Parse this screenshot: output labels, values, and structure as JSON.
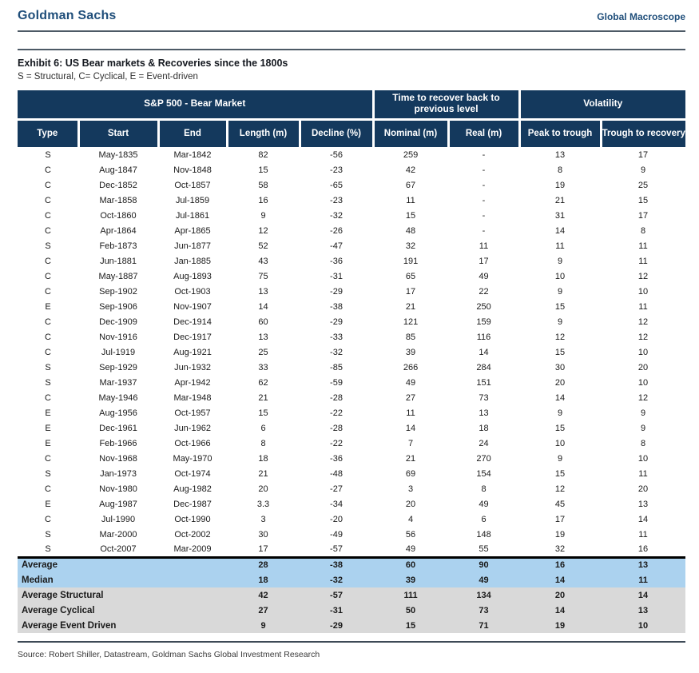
{
  "masthead": {
    "brand": "Goldman Sachs",
    "publication": "Global Macroscope"
  },
  "exhibit": {
    "title": "Exhibit 6: US Bear markets & Recoveries since the 1800s",
    "legend": "S = Structural, C= Cyclical, E = Event-driven"
  },
  "table": {
    "groups": [
      {
        "label": "S&P 500 - Bear Market",
        "span": 5
      },
      {
        "label": "Time to recover back to previous level",
        "span": 2
      },
      {
        "label": "Volatility",
        "span": 2
      }
    ],
    "columns": [
      "Type",
      "Start",
      "End",
      "Length (m)",
      "Decline (%)",
      "Nominal (m)",
      "Real (m)",
      "Peak to trough",
      "Trough to recovery"
    ],
    "rows": [
      [
        "S",
        "May-1835",
        "Mar-1842",
        "82",
        "-56",
        "259",
        "-",
        "13",
        "17"
      ],
      [
        "C",
        "Aug-1847",
        "Nov-1848",
        "15",
        "-23",
        "42",
        "-",
        "8",
        "9"
      ],
      [
        "C",
        "Dec-1852",
        "Oct-1857",
        "58",
        "-65",
        "67",
        "-",
        "19",
        "25"
      ],
      [
        "C",
        "Mar-1858",
        "Jul-1859",
        "16",
        "-23",
        "11",
        "-",
        "21",
        "15"
      ],
      [
        "C",
        "Oct-1860",
        "Jul-1861",
        "9",
        "-32",
        "15",
        "-",
        "31",
        "17"
      ],
      [
        "C",
        "Apr-1864",
        "Apr-1865",
        "12",
        "-26",
        "48",
        "-",
        "14",
        "8"
      ],
      [
        "S",
        "Feb-1873",
        "Jun-1877",
        "52",
        "-47",
        "32",
        "11",
        "11",
        "11"
      ],
      [
        "C",
        "Jun-1881",
        "Jan-1885",
        "43",
        "-36",
        "191",
        "17",
        "9",
        "11"
      ],
      [
        "C",
        "May-1887",
        "Aug-1893",
        "75",
        "-31",
        "65",
        "49",
        "10",
        "12"
      ],
      [
        "C",
        "Sep-1902",
        "Oct-1903",
        "13",
        "-29",
        "17",
        "22",
        "9",
        "10"
      ],
      [
        "E",
        "Sep-1906",
        "Nov-1907",
        "14",
        "-38",
        "21",
        "250",
        "15",
        "11"
      ],
      [
        "C",
        "Dec-1909",
        "Dec-1914",
        "60",
        "-29",
        "121",
        "159",
        "9",
        "12"
      ],
      [
        "C",
        "Nov-1916",
        "Dec-1917",
        "13",
        "-33",
        "85",
        "116",
        "12",
        "12"
      ],
      [
        "C",
        "Jul-1919",
        "Aug-1921",
        "25",
        "-32",
        "39",
        "14",
        "15",
        "10"
      ],
      [
        "S",
        "Sep-1929",
        "Jun-1932",
        "33",
        "-85",
        "266",
        "284",
        "30",
        "20"
      ],
      [
        "S",
        "Mar-1937",
        "Apr-1942",
        "62",
        "-59",
        "49",
        "151",
        "20",
        "10"
      ],
      [
        "C",
        "May-1946",
        "Mar-1948",
        "21",
        "-28",
        "27",
        "73",
        "14",
        "12"
      ],
      [
        "E",
        "Aug-1956",
        "Oct-1957",
        "15",
        "-22",
        "11",
        "13",
        "9",
        "9"
      ],
      [
        "E",
        "Dec-1961",
        "Jun-1962",
        "6",
        "-28",
        "14",
        "18",
        "15",
        "9"
      ],
      [
        "E",
        "Feb-1966",
        "Oct-1966",
        "8",
        "-22",
        "7",
        "24",
        "10",
        "8"
      ],
      [
        "C",
        "Nov-1968",
        "May-1970",
        "18",
        "-36",
        "21",
        "270",
        "9",
        "10"
      ],
      [
        "S",
        "Jan-1973",
        "Oct-1974",
        "21",
        "-48",
        "69",
        "154",
        "15",
        "11"
      ],
      [
        "C",
        "Nov-1980",
        "Aug-1982",
        "20",
        "-27",
        "3",
        "8",
        "12",
        "20"
      ],
      [
        "E",
        "Aug-1987",
        "Dec-1987",
        "3.3",
        "-34",
        "20",
        "49",
        "45",
        "13"
      ],
      [
        "C",
        "Jul-1990",
        "Oct-1990",
        "3",
        "-20",
        "4",
        "6",
        "17",
        "14"
      ],
      [
        "S",
        "Mar-2000",
        "Oct-2002",
        "30",
        "-49",
        "56",
        "148",
        "19",
        "11"
      ],
      [
        "S",
        "Oct-2007",
        "Mar-2009",
        "17",
        "-57",
        "49",
        "55",
        "32",
        "16"
      ]
    ],
    "summary_rows": [
      {
        "label": "Average",
        "values": [
          "28",
          "-38",
          "60",
          "90",
          "16",
          "13"
        ],
        "style": "blue"
      },
      {
        "label": "Median",
        "values": [
          "18",
          "-32",
          "39",
          "49",
          "14",
          "11"
        ],
        "style": "blue"
      },
      {
        "label": "Average Structural",
        "values": [
          "42",
          "-57",
          "111",
          "134",
          "20",
          "14"
        ],
        "style": "gray"
      },
      {
        "label": "Average Cyclical",
        "values": [
          "27",
          "-31",
          "50",
          "73",
          "14",
          "13"
        ],
        "style": "gray"
      },
      {
        "label": "Average Event Driven",
        "values": [
          "9",
          "-29",
          "15",
          "71",
          "19",
          "10"
        ],
        "style": "gray"
      }
    ]
  },
  "footer": {
    "source": "Source: Robert Shiller, Datastream, Goldman Sachs Global Investment Research"
  },
  "colors": {
    "header_navy": "#14395d",
    "summary_blue": "#abd2ef",
    "summary_gray": "#d9d9d9",
    "brand_blue": "#1f4e7a"
  }
}
